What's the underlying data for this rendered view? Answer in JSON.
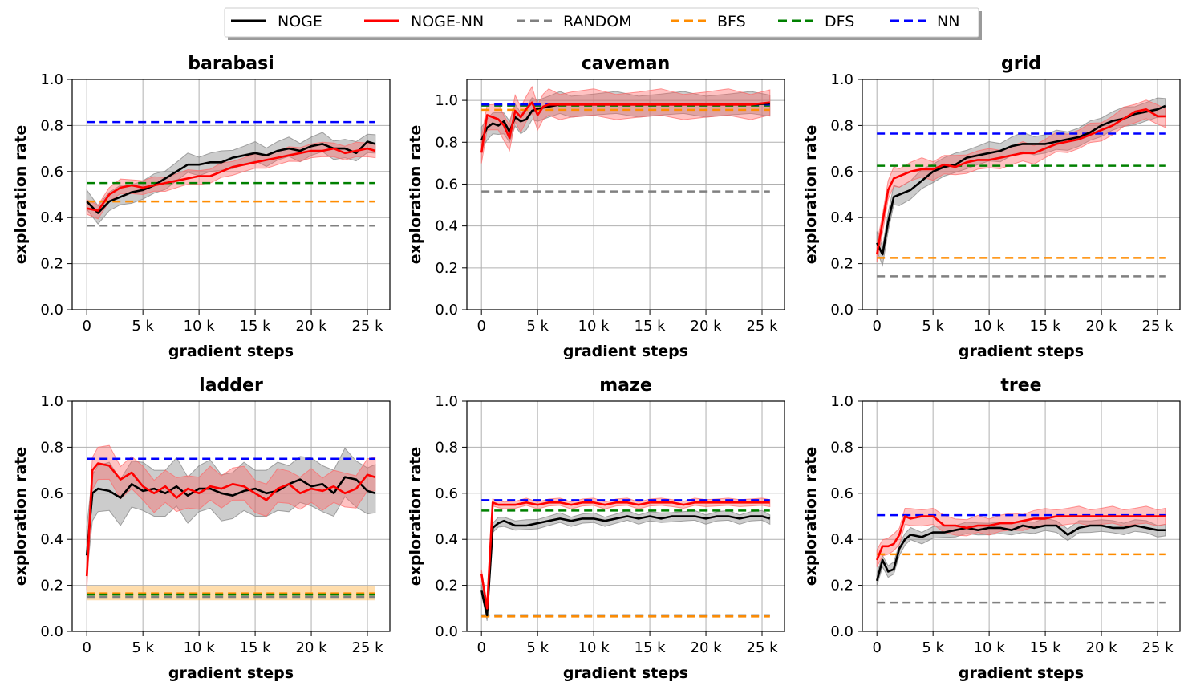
{
  "colors": {
    "NOGE": "#000000",
    "NOGE-NN": "#ff0000",
    "RANDOM": "#808080",
    "BFS": "#ff8c00",
    "DFS": "#008000",
    "NN": "#0000ff",
    "band_noge": "#808080",
    "band_nogenn": "#ff6666",
    "band_bfs": "#ffb347",
    "grid": "#b0b0b0"
  },
  "legend": [
    {
      "label": "NOGE",
      "key": "NOGE",
      "dash": false
    },
    {
      "label": "NOGE-NN",
      "key": "NOGE-NN",
      "dash": false
    },
    {
      "label": "RANDOM",
      "key": "RANDOM",
      "dash": true
    },
    {
      "label": "BFS",
      "key": "BFS",
      "dash": true
    },
    {
      "label": "DFS",
      "key": "DFS",
      "dash": true
    },
    {
      "label": "NN",
      "key": "NN",
      "dash": true
    }
  ],
  "chart_data": [
    {
      "type": "line",
      "title": "barabasi",
      "xlabel": "gradient steps",
      "ylabel": "exploration rate",
      "xlim": [
        -1300,
        27000
      ],
      "ylim": [
        0,
        1.0
      ],
      "xticks": [
        0,
        5000,
        10000,
        15000,
        20000,
        25000
      ],
      "xtick_labels": [
        "0",
        "5 k",
        "10 k",
        "15 k",
        "20 k",
        "25 k"
      ],
      "yticks": [
        0,
        0.2,
        0.4,
        0.6,
        0.8,
        1.0
      ],
      "ytick_labels": [
        "0.0",
        "0.2",
        "0.4",
        "0.6",
        "0.8",
        "1.0"
      ],
      "baselines": {
        "NN": 0.815,
        "DFS": 0.55,
        "BFS": 0.47,
        "RANDOM": 0.365
      },
      "series": [
        {
          "name": "NOGE",
          "x": [
            0,
            1000,
            2000,
            3000,
            4000,
            5000,
            6000,
            7000,
            8000,
            9000,
            10000,
            11000,
            12000,
            13000,
            14000,
            15000,
            16000,
            17000,
            18000,
            19000,
            20000,
            21000,
            22000,
            23000,
            24000,
            25000,
            25700
          ],
          "y": [
            0.47,
            0.42,
            0.47,
            0.49,
            0.51,
            0.52,
            0.54,
            0.57,
            0.6,
            0.63,
            0.63,
            0.64,
            0.64,
            0.66,
            0.67,
            0.68,
            0.67,
            0.69,
            0.7,
            0.69,
            0.71,
            0.72,
            0.7,
            0.7,
            0.68,
            0.73,
            0.72
          ],
          "spread": 0.04
        },
        {
          "name": "NOGE-NN",
          "x": [
            0,
            1000,
            2000,
            3000,
            4000,
            5000,
            6000,
            7000,
            8000,
            9000,
            10000,
            11000,
            12000,
            13000,
            14000,
            15000,
            16000,
            17000,
            18000,
            19000,
            20000,
            21000,
            22000,
            23000,
            24000,
            25000,
            25700
          ],
          "y": [
            0.44,
            0.43,
            0.5,
            0.53,
            0.54,
            0.53,
            0.54,
            0.55,
            0.56,
            0.57,
            0.58,
            0.58,
            0.6,
            0.62,
            0.63,
            0.64,
            0.65,
            0.66,
            0.67,
            0.68,
            0.69,
            0.69,
            0.7,
            0.68,
            0.69,
            0.7,
            0.69
          ],
          "spread": 0.03
        }
      ]
    },
    {
      "type": "line",
      "title": "caveman",
      "xlabel": "gradient steps",
      "ylabel": "exploration rate",
      "xlim": [
        -1300,
        27000
      ],
      "ylim": [
        0,
        1.1
      ],
      "xticks": [
        0,
        5000,
        10000,
        15000,
        20000,
        25000
      ],
      "xtick_labels": [
        "0",
        "5 k",
        "10 k",
        "15 k",
        "20 k",
        "25 k"
      ],
      "yticks": [
        0,
        0.2,
        0.4,
        0.6,
        0.8,
        1.0
      ],
      "ytick_labels": [
        "0.0",
        "0.2",
        "0.4",
        "0.6",
        "0.8",
        "1.0"
      ],
      "baselines": {
        "NN": 0.98,
        "DFS": 0.975,
        "BFS": 0.955,
        "RANDOM": 0.565
      },
      "series": [
        {
          "name": "NOGE",
          "x": [
            0,
            500,
            1000,
            1500,
            2000,
            2500,
            3000,
            3500,
            4000,
            4500,
            5000,
            6000,
            7000,
            8000,
            10000,
            12000,
            14000,
            16000,
            18000,
            20000,
            22000,
            24000,
            25700
          ],
          "y": [
            0.81,
            0.87,
            0.89,
            0.88,
            0.9,
            0.85,
            0.92,
            0.9,
            0.91,
            0.95,
            0.96,
            0.97,
            0.98,
            0.98,
            0.98,
            0.98,
            0.98,
            0.98,
            0.98,
            0.98,
            0.98,
            0.98,
            0.985
          ],
          "spread": 0.05
        },
        {
          "name": "NOGE-NN",
          "x": [
            0,
            500,
            1000,
            1500,
            2000,
            2500,
            3000,
            3500,
            4000,
            4500,
            5000,
            5500,
            6000,
            7000,
            8000,
            10000,
            12000,
            14000,
            16000,
            18000,
            20000,
            22000,
            24000,
            25700
          ],
          "y": [
            0.75,
            0.93,
            0.92,
            0.91,
            0.88,
            0.82,
            0.95,
            0.92,
            0.96,
            0.99,
            0.93,
            0.97,
            0.98,
            0.98,
            0.98,
            0.98,
            0.98,
            0.98,
            0.98,
            0.98,
            0.98,
            0.98,
            0.98,
            0.99
          ],
          "spread": 0.06
        }
      ]
    },
    {
      "type": "line",
      "title": "grid",
      "xlabel": "gradient steps",
      "ylabel": "exploration rate",
      "xlim": [
        -1300,
        27000
      ],
      "ylim": [
        0,
        1.0
      ],
      "xticks": [
        0,
        5000,
        10000,
        15000,
        20000,
        25000
      ],
      "xtick_labels": [
        "0",
        "5 k",
        "10 k",
        "15 k",
        "20 k",
        "25 k"
      ],
      "yticks": [
        0,
        0.2,
        0.4,
        0.6,
        0.8,
        1.0
      ],
      "ytick_labels": [
        "0.0",
        "0.2",
        "0.4",
        "0.6",
        "0.8",
        "1.0"
      ],
      "baselines": {
        "NN": 0.765,
        "DFS": 0.625,
        "BFS": 0.225,
        "RANDOM": 0.145
      },
      "series": [
        {
          "name": "NOGE",
          "x": [
            0,
            500,
            1000,
            1500,
            2000,
            3000,
            4000,
            5000,
            6000,
            7000,
            8000,
            9000,
            10000,
            11000,
            12000,
            13000,
            14000,
            15000,
            16000,
            17000,
            18000,
            19000,
            20000,
            21000,
            22000,
            23000,
            24000,
            25000,
            25700
          ],
          "y": [
            0.29,
            0.24,
            0.38,
            0.49,
            0.5,
            0.52,
            0.56,
            0.6,
            0.62,
            0.63,
            0.66,
            0.67,
            0.68,
            0.69,
            0.71,
            0.72,
            0.72,
            0.72,
            0.73,
            0.74,
            0.75,
            0.77,
            0.8,
            0.82,
            0.83,
            0.85,
            0.86,
            0.87,
            0.885
          ],
          "spread": 0.04
        },
        {
          "name": "NOGE-NN",
          "x": [
            0,
            500,
            1000,
            1500,
            2000,
            3000,
            4000,
            5000,
            6000,
            7000,
            8000,
            9000,
            10000,
            11000,
            12000,
            13000,
            14000,
            15000,
            16000,
            17000,
            18000,
            19000,
            20000,
            21000,
            22000,
            23000,
            24000,
            25000,
            25700
          ],
          "y": [
            0.24,
            0.38,
            0.52,
            0.57,
            0.58,
            0.6,
            0.61,
            0.61,
            0.63,
            0.62,
            0.64,
            0.65,
            0.65,
            0.66,
            0.67,
            0.68,
            0.68,
            0.7,
            0.72,
            0.73,
            0.74,
            0.76,
            0.78,
            0.8,
            0.83,
            0.86,
            0.87,
            0.84,
            0.84
          ],
          "spread": 0.04
        }
      ]
    },
    {
      "type": "line",
      "title": "ladder",
      "xlabel": "gradient steps",
      "ylabel": "exploration rate",
      "xlim": [
        -1300,
        27000
      ],
      "ylim": [
        0,
        1.0
      ],
      "xticks": [
        0,
        5000,
        10000,
        15000,
        20000,
        25000
      ],
      "xtick_labels": [
        "0",
        "5 k",
        "10 k",
        "15 k",
        "20 k",
        "25 k"
      ],
      "yticks": [
        0,
        0.2,
        0.4,
        0.6,
        0.8,
        1.0
      ],
      "ytick_labels": [
        "0.0",
        "0.2",
        "0.4",
        "0.6",
        "0.8",
        "1.0"
      ],
      "baselines": {
        "NN": 0.75,
        "BFS": 0.165,
        "DFS": 0.16,
        "RANDOM": 0.15
      },
      "series": [
        {
          "name": "NOGE",
          "x": [
            0,
            500,
            1000,
            2000,
            3000,
            4000,
            5000,
            6000,
            7000,
            8000,
            9000,
            10000,
            11000,
            12000,
            13000,
            14000,
            15000,
            16000,
            17000,
            18000,
            19000,
            20000,
            21000,
            22000,
            23000,
            24000,
            25000,
            25700
          ],
          "y": [
            0.33,
            0.6,
            0.62,
            0.61,
            0.58,
            0.64,
            0.61,
            0.62,
            0.6,
            0.63,
            0.59,
            0.62,
            0.62,
            0.6,
            0.59,
            0.61,
            0.62,
            0.6,
            0.61,
            0.64,
            0.66,
            0.63,
            0.64,
            0.6,
            0.67,
            0.66,
            0.61,
            0.6
          ],
          "spread": 0.1
        },
        {
          "name": "NOGE-NN",
          "x": [
            0,
            500,
            1000,
            2000,
            3000,
            4000,
            5000,
            6000,
            7000,
            8000,
            9000,
            10000,
            11000,
            12000,
            13000,
            14000,
            15000,
            16000,
            17000,
            18000,
            19000,
            20000,
            21000,
            22000,
            23000,
            24000,
            25000,
            25700
          ],
          "y": [
            0.24,
            0.7,
            0.73,
            0.72,
            0.66,
            0.69,
            0.63,
            0.6,
            0.63,
            0.58,
            0.62,
            0.6,
            0.63,
            0.62,
            0.64,
            0.63,
            0.6,
            0.57,
            0.62,
            0.64,
            0.6,
            0.62,
            0.61,
            0.63,
            0.6,
            0.62,
            0.68,
            0.67
          ],
          "spread": 0.07
        }
      ]
    },
    {
      "type": "line",
      "title": "maze",
      "xlabel": "gradient steps",
      "ylabel": "exploration rate",
      "xlim": [
        -1300,
        27000
      ],
      "ylim": [
        0,
        1.0
      ],
      "xticks": [
        0,
        5000,
        10000,
        15000,
        20000,
        25000
      ],
      "xtick_labels": [
        "0",
        "5 k",
        "10 k",
        "15 k",
        "20 k",
        "25 k"
      ],
      "yticks": [
        0,
        0.2,
        0.4,
        0.6,
        0.8,
        1.0
      ],
      "ytick_labels": [
        "0.0",
        "0.2",
        "0.4",
        "0.6",
        "0.8",
        "1.0"
      ],
      "baselines": {
        "NN": 0.57,
        "DFS": 0.525,
        "RANDOM": 0.07,
        "BFS": 0.065
      },
      "series": [
        {
          "name": "NOGE",
          "x": [
            0,
            500,
            1000,
            1500,
            2000,
            3000,
            4000,
            5000,
            6000,
            7000,
            8000,
            9000,
            10000,
            11000,
            12000,
            13000,
            14000,
            15000,
            16000,
            17000,
            18000,
            19000,
            20000,
            21000,
            22000,
            23000,
            24000,
            25000,
            25700
          ],
          "y": [
            0.18,
            0.07,
            0.45,
            0.47,
            0.48,
            0.46,
            0.46,
            0.47,
            0.48,
            0.49,
            0.48,
            0.49,
            0.49,
            0.48,
            0.49,
            0.5,
            0.49,
            0.5,
            0.49,
            0.5,
            0.5,
            0.5,
            0.49,
            0.5,
            0.5,
            0.49,
            0.5,
            0.5,
            0.49
          ],
          "spread": 0.02
        },
        {
          "name": "NOGE-NN",
          "x": [
            0,
            500,
            1000,
            1500,
            2000,
            3000,
            4000,
            5000,
            6000,
            7000,
            8000,
            9000,
            10000,
            11000,
            12000,
            13000,
            14000,
            15000,
            16000,
            17000,
            18000,
            19000,
            20000,
            21000,
            22000,
            23000,
            24000,
            25000,
            25700
          ],
          "y": [
            0.25,
            0.1,
            0.56,
            0.55,
            0.55,
            0.55,
            0.56,
            0.55,
            0.56,
            0.56,
            0.55,
            0.56,
            0.56,
            0.55,
            0.56,
            0.56,
            0.55,
            0.56,
            0.56,
            0.56,
            0.55,
            0.56,
            0.56,
            0.56,
            0.56,
            0.56,
            0.56,
            0.56,
            0.56
          ],
          "spread": 0.015
        }
      ]
    },
    {
      "type": "line",
      "title": "tree",
      "xlabel": "gradient steps",
      "ylabel": "exploration rate",
      "xlim": [
        -1300,
        27000
      ],
      "ylim": [
        0,
        1.0
      ],
      "xticks": [
        0,
        5000,
        10000,
        15000,
        20000,
        25000
      ],
      "xtick_labels": [
        "0",
        "5 k",
        "10 k",
        "15 k",
        "20 k",
        "25 k"
      ],
      "yticks": [
        0,
        0.2,
        0.4,
        0.6,
        0.8,
        1.0
      ],
      "ytick_labels": [
        "0.0",
        "0.2",
        "0.4",
        "0.6",
        "0.8",
        "1.0"
      ],
      "baselines": {
        "NN": 0.505,
        "BFS": 0.335,
        "RANDOM": 0.125
      },
      "series": [
        {
          "name": "NOGE",
          "x": [
            0,
            500,
            1000,
            1500,
            2000,
            2500,
            3000,
            4000,
            5000,
            6000,
            7000,
            8000,
            9000,
            10000,
            11000,
            12000,
            13000,
            14000,
            15000,
            16000,
            17000,
            18000,
            19000,
            20000,
            21000,
            22000,
            23000,
            24000,
            25000,
            25700
          ],
          "y": [
            0.22,
            0.31,
            0.26,
            0.27,
            0.36,
            0.4,
            0.42,
            0.41,
            0.43,
            0.43,
            0.44,
            0.45,
            0.44,
            0.45,
            0.45,
            0.44,
            0.46,
            0.45,
            0.46,
            0.46,
            0.42,
            0.45,
            0.46,
            0.46,
            0.45,
            0.45,
            0.46,
            0.45,
            0.44,
            0.44
          ],
          "spread": 0.025
        },
        {
          "name": "NOGE-NN",
          "x": [
            0,
            500,
            1000,
            1500,
            2000,
            2500,
            3000,
            4000,
            5000,
            6000,
            7000,
            8000,
            9000,
            10000,
            11000,
            12000,
            13000,
            14000,
            15000,
            16000,
            17000,
            18000,
            19000,
            20000,
            21000,
            22000,
            23000,
            24000,
            25000,
            25700
          ],
          "y": [
            0.31,
            0.37,
            0.37,
            0.38,
            0.42,
            0.5,
            0.49,
            0.5,
            0.5,
            0.46,
            0.46,
            0.45,
            0.46,
            0.46,
            0.47,
            0.47,
            0.48,
            0.49,
            0.49,
            0.5,
            0.5,
            0.5,
            0.5,
            0.5,
            0.5,
            0.5,
            0.5,
            0.5,
            0.5,
            0.5
          ],
          "spread": 0.035
        }
      ]
    }
  ]
}
